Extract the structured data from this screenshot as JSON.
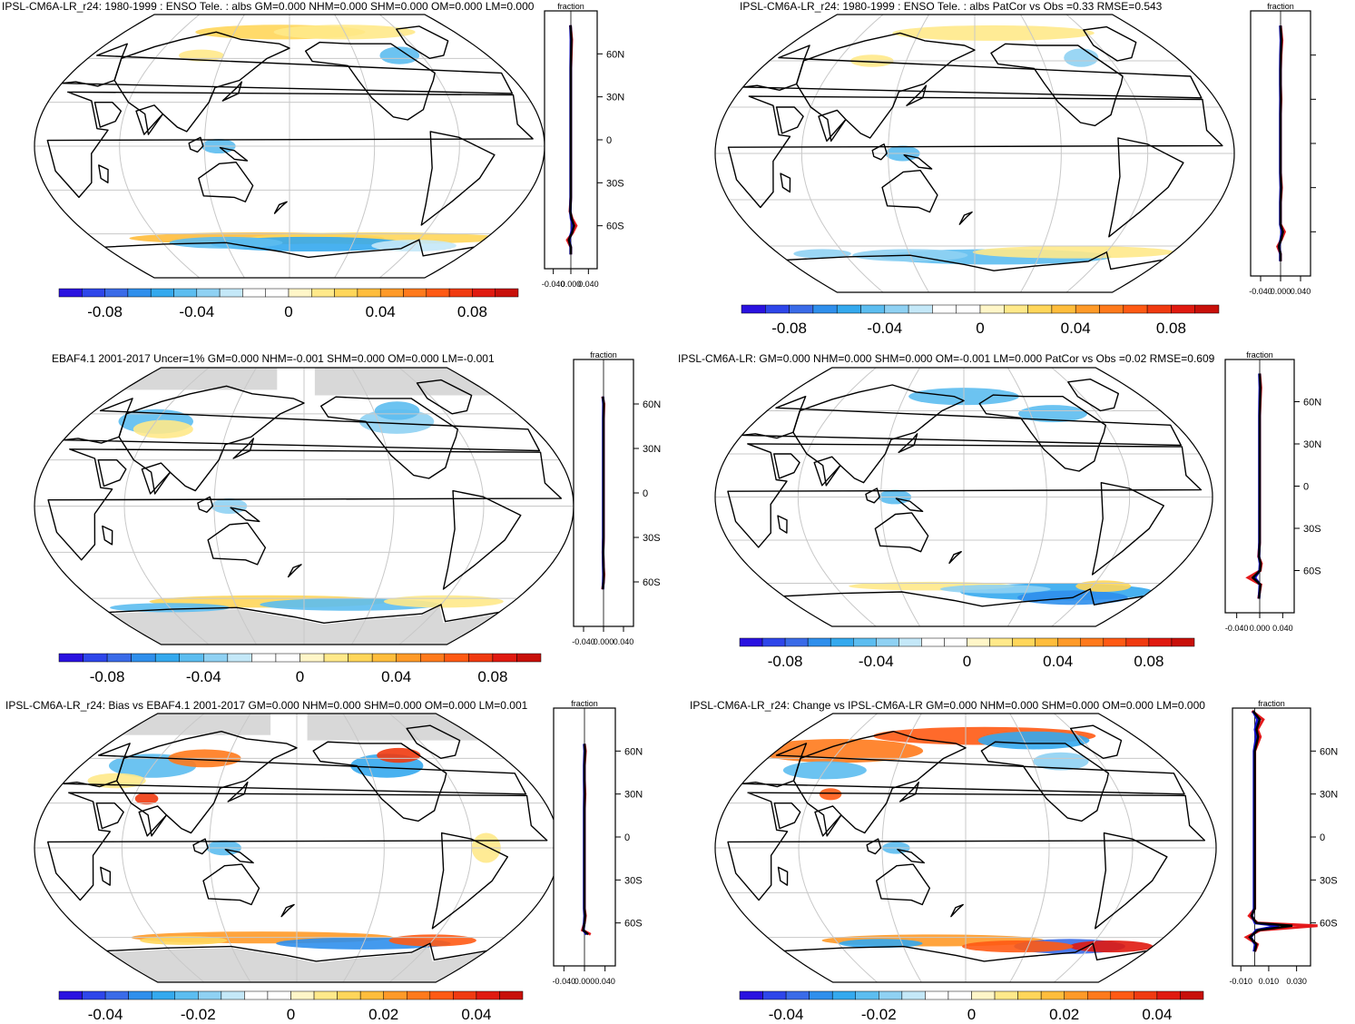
{
  "colors": {
    "palette": [
      "#2a12e0",
      "#2e46ea",
      "#3a6be8",
      "#2f8fec",
      "#34a9ee",
      "#5cbdf0",
      "#8fd1f3",
      "#c4e8f8",
      "#ffffff",
      "#ffffff",
      "#fff6c8",
      "#ffe98a",
      "#ffd65a",
      "#ffbd3c",
      "#ff9a28",
      "#ff7a1c",
      "#ff5a14",
      "#f03a10",
      "#e01a10",
      "#c8100a"
    ],
    "land_grey": "#d8d8d8",
    "line_model": "#e41a1c",
    "line_obs": "#1010d0",
    "line_mean": "#000000"
  },
  "chart_data": [
    {
      "type": "heatmap",
      "title": "IPSL-CM6A-LR_r24: 1980-1999 : ENSO Tele. : albs GM=0.000 NHM=0.000 SHM=0.000 OM=0.000 LM=0.000",
      "lat_labels": [
        "60N",
        "30N",
        "0",
        "30S",
        "60S"
      ],
      "zonal_xlabel": "fraction",
      "zonal_ticks": [
        "-0.040",
        "0.000",
        "0.040"
      ],
      "zonal_xlim": [
        -0.06,
        0.06
      ],
      "colorbar_labels": [
        "-0.08",
        "-0.04",
        "0",
        "0.04",
        "0.08"
      ],
      "colorbar_range": [
        -0.1,
        0.1
      ],
      "zonal_profile": {
        "lat": [
          80,
          70,
          60,
          50,
          40,
          30,
          20,
          10,
          0,
          -10,
          -20,
          -30,
          -40,
          -50,
          -55,
          -60,
          -65,
          -70,
          -75,
          -80
        ],
        "values": [
          -0.001,
          0.002,
          0.001,
          0.0,
          0.0,
          0.0,
          0.0,
          0.0,
          0.0,
          0.0,
          0.0,
          0.0,
          0.0,
          -0.002,
          0.003,
          0.012,
          0.004,
          -0.008,
          0.0,
          0.0
        ]
      }
    },
    {
      "type": "heatmap",
      "title": "IPSL-CM6A-LR_r24: 1980-1999 : ENSO Tele. : albs PatCor vs Obs =0.33 RMSE=0.543",
      "lat_labels": [
        "",
        "",
        "",
        "",
        ""
      ],
      "zonal_xlabel": "fraction",
      "zonal_ticks": [
        "-0.040",
        "0.000",
        "0.040"
      ],
      "zonal_xlim": [
        -0.06,
        0.06
      ],
      "colorbar_labels": [
        "-0.08",
        "-0.04",
        "0",
        "0.04",
        "0.08"
      ],
      "colorbar_range": [
        -0.1,
        0.1
      ],
      "zonal_profile": {
        "lat": [
          80,
          70,
          60,
          50,
          40,
          30,
          20,
          10,
          0,
          -10,
          -20,
          -30,
          -40,
          -50,
          -55,
          -60,
          -65,
          -70,
          -75,
          -80
        ],
        "values": [
          0.0,
          0.003,
          0.001,
          0.0,
          0.0,
          0.001,
          0.0,
          0.0,
          0.0,
          0.0,
          0.0,
          0.002,
          0.0,
          0.0,
          0.0,
          0.008,
          0.002,
          -0.006,
          0.0,
          0.0
        ]
      }
    },
    {
      "type": "heatmap",
      "title": "EBAF4.1 2001-2017 Uncer=1% GM=0.000 NHM=-0.001 SHM=0.000 OM=0.000 LM=-0.001",
      "lat_labels": [
        "60N",
        "30N",
        "0",
        "30S",
        "60S"
      ],
      "zonal_xlabel": "fraction",
      "zonal_ticks": [
        "-0.040",
        "0.000",
        "0.040"
      ],
      "zonal_xlim": [
        -0.06,
        0.06
      ],
      "colorbar_labels": [
        "-0.08",
        "-0.04",
        "0",
        "0.04",
        "0.08"
      ],
      "colorbar_range": [
        -0.1,
        0.1
      ],
      "zonal_profile": {
        "lat": [
          65,
          60,
          50,
          40,
          30,
          20,
          10,
          0,
          -10,
          -20,
          -30,
          -40,
          -50,
          -55,
          -60,
          -65
        ],
        "values": [
          -0.002,
          0.001,
          0.0,
          0.0,
          0.0,
          0.0,
          0.0,
          0.0,
          0.0,
          0.0,
          0.0,
          -0.001,
          0.0,
          0.001,
          0.0,
          -0.002
        ]
      }
    },
    {
      "type": "heatmap",
      "title": "IPSL-CM6A-LR: GM=0.000 NHM=0.000 SHM=0.000 OM=-0.001 LM=0.000 PatCor vs Obs =0.02 RMSE=0.609",
      "lat_labels": [
        "60N",
        "30N",
        "0",
        "30S",
        "60S"
      ],
      "zonal_xlabel": "fraction",
      "zonal_ticks": [
        "-0.040",
        "0.000",
        "0.040"
      ],
      "zonal_xlim": [
        -0.06,
        0.06
      ],
      "colorbar_labels": [
        "-0.08",
        "-0.04",
        "0",
        "0.04",
        "0.08"
      ],
      "colorbar_range": [
        -0.1,
        0.1
      ],
      "zonal_profile": {
        "lat": [
          80,
          70,
          60,
          50,
          40,
          30,
          20,
          10,
          0,
          -10,
          -20,
          -30,
          -40,
          -50,
          -55,
          -60,
          -65,
          -70,
          -75,
          -80
        ],
        "values": [
          0.0,
          0.002,
          0.001,
          0.0,
          0.0,
          0.0,
          0.0,
          0.0,
          0.0,
          0.0,
          0.0,
          0.0,
          0.0,
          -0.002,
          0.003,
          0.001,
          -0.02,
          0.002,
          0.0,
          -0.002
        ]
      }
    },
    {
      "type": "heatmap",
      "title": "IPSL-CM6A-LR_r24: Bias vs EBAF4.1 2001-2017 GM=0.000 NHM=0.000 SHM=0.000 OM=0.000 LM=0.001",
      "lat_labels": [
        "60N",
        "30N",
        "0",
        "30S",
        "60S"
      ],
      "zonal_xlabel": "fraction",
      "zonal_ticks": [
        "-0.040",
        "0.000",
        "0.040"
      ],
      "zonal_xlim": [
        -0.06,
        0.06
      ],
      "colorbar_labels": [
        "-0.04",
        "-0.02",
        "0",
        "0.02",
        "0.04"
      ],
      "colorbar_range": [
        -0.05,
        0.05
      ],
      "zonal_profile": {
        "lat": [
          65,
          60,
          50,
          40,
          30,
          20,
          10,
          0,
          -10,
          -20,
          -30,
          -40,
          -50,
          -55,
          -60,
          -65,
          -68
        ],
        "values": [
          0.0,
          0.002,
          0.0,
          0.0,
          0.001,
          0.0,
          0.0,
          0.0,
          0.0,
          0.0,
          0.0,
          0.0,
          0.0,
          0.002,
          0.0,
          -0.004,
          0.012
        ]
      }
    },
    {
      "type": "heatmap",
      "title": "IPSL-CM6A-LR_r24: Change vs IPSL-CM6A-LR GM=0.000 NHM=0.000 SHM=0.000 OM=0.000 LM=0.000",
      "lat_labels": [
        "60N",
        "30N",
        "0",
        "30S",
        "60S"
      ],
      "zonal_xlabel": "fraction",
      "zonal_ticks": [
        "-0.010",
        "0.010",
        "0.030"
      ],
      "zonal_xlim": [
        -0.016,
        0.04
      ],
      "colorbar_labels": [
        "-0.04",
        "-0.02",
        "0",
        "0.02",
        "0.04"
      ],
      "colorbar_range": [
        -0.05,
        0.05
      ],
      "zonal_profile": {
        "lat": [
          88,
          82,
          75,
          70,
          60,
          50,
          40,
          30,
          20,
          10,
          0,
          -10,
          -20,
          -30,
          -40,
          -50,
          -55,
          -60,
          -62,
          -65,
          -70,
          -75,
          -80
        ],
        "values": [
          -0.002,
          0.006,
          0.002,
          0.004,
          0.0,
          0.0,
          0.0,
          0.0,
          0.0,
          0.0,
          0.0,
          0.0,
          0.0,
          0.0,
          0.0,
          0.0,
          -0.004,
          0.002,
          0.045,
          0.004,
          -0.006,
          0.002,
          0.0
        ]
      }
    }
  ]
}
